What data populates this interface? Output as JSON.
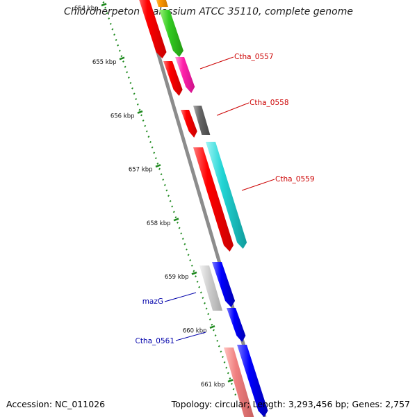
{
  "title": "Chloroherpeton thalassium ATCC 35110, complete genome",
  "footer": {
    "accession": "Accession: NC_011026",
    "summary": "Topology: circular; Length: 3,293,456 bp; Genes: 2,757"
  },
  "colors": {
    "backbone": "#8c8c8c",
    "tick": "#1f8a1f",
    "gene_label": "#cc0000",
    "gene_label_blue": "#0000aa"
  },
  "ticks": [
    {
      "kbp": 654,
      "label": "654 kbp"
    },
    {
      "kbp": 655,
      "label": "655 kbp"
    },
    {
      "kbp": 656,
      "label": "656 kbp"
    },
    {
      "kbp": 657,
      "label": "657 kbp"
    },
    {
      "kbp": 658,
      "label": "658 kbp"
    },
    {
      "kbp": 659,
      "label": "659 kbp"
    },
    {
      "kbp": 660,
      "label": "660 kbp"
    },
    {
      "kbp": 661,
      "label": "661 kbp"
    }
  ],
  "gene_labels": [
    {
      "text": "Ctha_0557",
      "color": "#cc0000"
    },
    {
      "text": "Ctha_0558",
      "color": "#cc0000"
    },
    {
      "text": "Ctha_0559",
      "color": "#cc0000"
    },
    {
      "text": "mazG",
      "color": "#0000aa"
    },
    {
      "text": "Ctha_0561",
      "color": "#0000aa"
    }
  ]
}
